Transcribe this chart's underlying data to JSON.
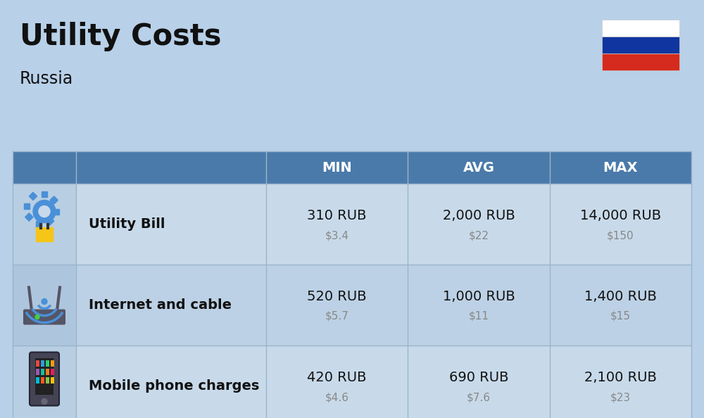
{
  "title": "Utility Costs",
  "subtitle": "Russia",
  "background_color": "#b8d0e8",
  "header_bg_color": "#4a7aaa",
  "header_text_color": "#ffffff",
  "row_bg_color_odd": "#c8daea",
  "row_bg_color_even": "#bcd1e5",
  "col_headers": [
    "MIN",
    "AVG",
    "MAX"
  ],
  "rows": [
    {
      "label": "Utility Bill",
      "min_rub": "310 RUB",
      "min_usd": "$3.4",
      "avg_rub": "2,000 RUB",
      "avg_usd": "$22",
      "max_rub": "14,000 RUB",
      "max_usd": "$150"
    },
    {
      "label": "Internet and cable",
      "min_rub": "520 RUB",
      "min_usd": "$5.7",
      "avg_rub": "1,000 RUB",
      "avg_usd": "$11",
      "max_rub": "1,400 RUB",
      "max_usd": "$15"
    },
    {
      "label": "Mobile phone charges",
      "min_rub": "420 RUB",
      "min_usd": "$4.6",
      "avg_rub": "690 RUB",
      "avg_usd": "$7.6",
      "max_rub": "2,100 RUB",
      "max_usd": "$23"
    }
  ],
  "flag_colors": [
    "#ffffff",
    "#1035a0",
    "#d52b1e"
  ],
  "title_fontsize": 30,
  "subtitle_fontsize": 17,
  "header_fontsize": 14,
  "label_fontsize": 14,
  "value_fontsize": 14,
  "usd_fontsize": 11,
  "divider_color": "#9ab5cc",
  "label_color": "#111111",
  "usd_color": "#888888"
}
